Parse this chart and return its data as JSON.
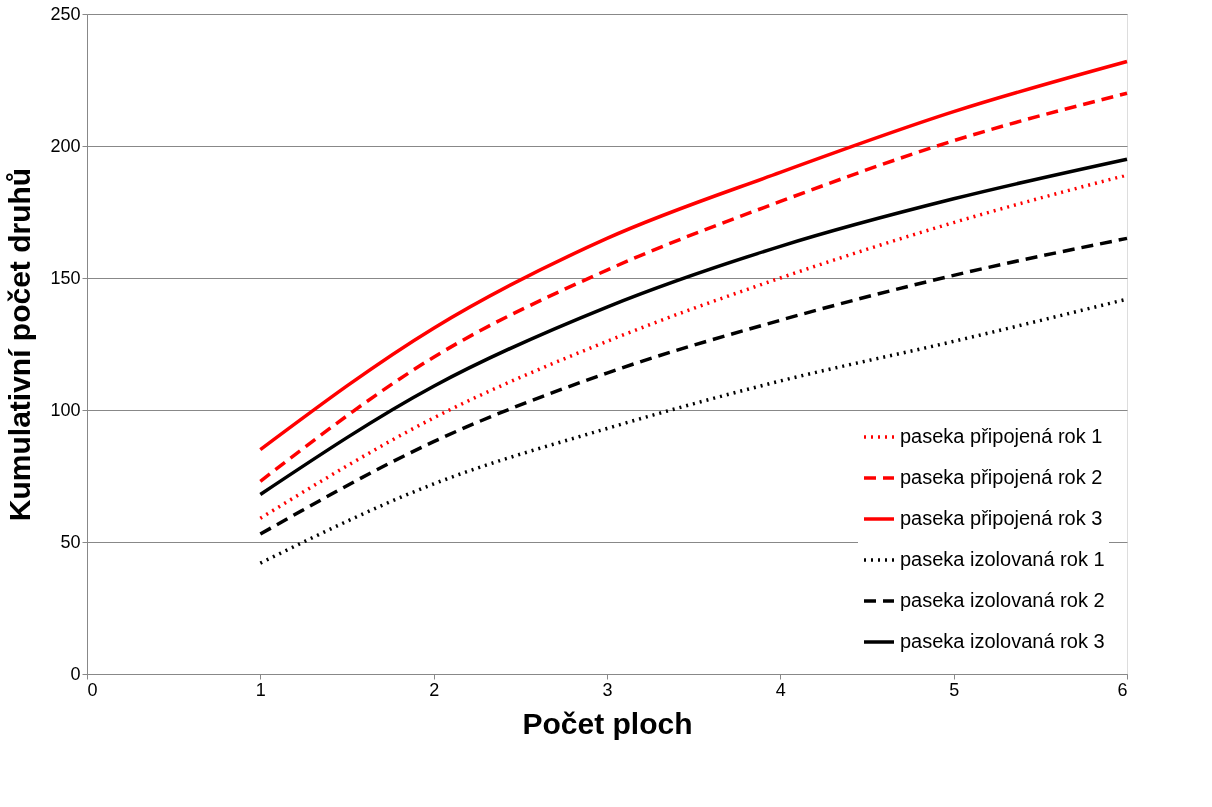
{
  "chart_data": {
    "type": "line",
    "xlabel": "Počet ploch",
    "ylabel": "Kumulativní počet druhů",
    "x": [
      1,
      2,
      3,
      4,
      5,
      6
    ],
    "series": [
      {
        "name": "paseka připojená rok 1",
        "color": "#ff0000",
        "line_style": "dotted",
        "values": [
          59,
          97,
          126,
          150,
          171,
          189
        ]
      },
      {
        "name": "paseka připojená rok 2",
        "color": "#ff0000",
        "line_style": "dashed",
        "values": [
          73,
          120,
          153,
          179,
          202,
          220
        ]
      },
      {
        "name": "paseka připojená rok 3",
        "color": "#ff0000",
        "line_style": "solid",
        "values": [
          85,
          131,
          165,
          190,
          213,
          232
        ]
      },
      {
        "name": "paseka izolovaná rok 1",
        "color": "#000000",
        "line_style": "dotted",
        "values": [
          42,
          72,
          93,
          111,
          126,
          142
        ]
      },
      {
        "name": "paseka izolovaná rok 2",
        "color": "#000000",
        "line_style": "dashed",
        "values": [
          53,
          88,
          114,
          134,
          151,
          165
        ]
      },
      {
        "name": "paseka izolovaná rok 3",
        "color": "#000000",
        "line_style": "solid",
        "values": [
          68,
          109,
          139,
          162,
          180,
          195
        ]
      }
    ],
    "xlim": [
      0,
      6
    ],
    "xticks": [
      0,
      1,
      2,
      3,
      4,
      5,
      6
    ],
    "ylim": [
      0,
      250
    ],
    "yticks": [
      0,
      50,
      100,
      150,
      200,
      250
    ],
    "grid": "y",
    "legend": "bottom right",
    "marker": "none"
  }
}
